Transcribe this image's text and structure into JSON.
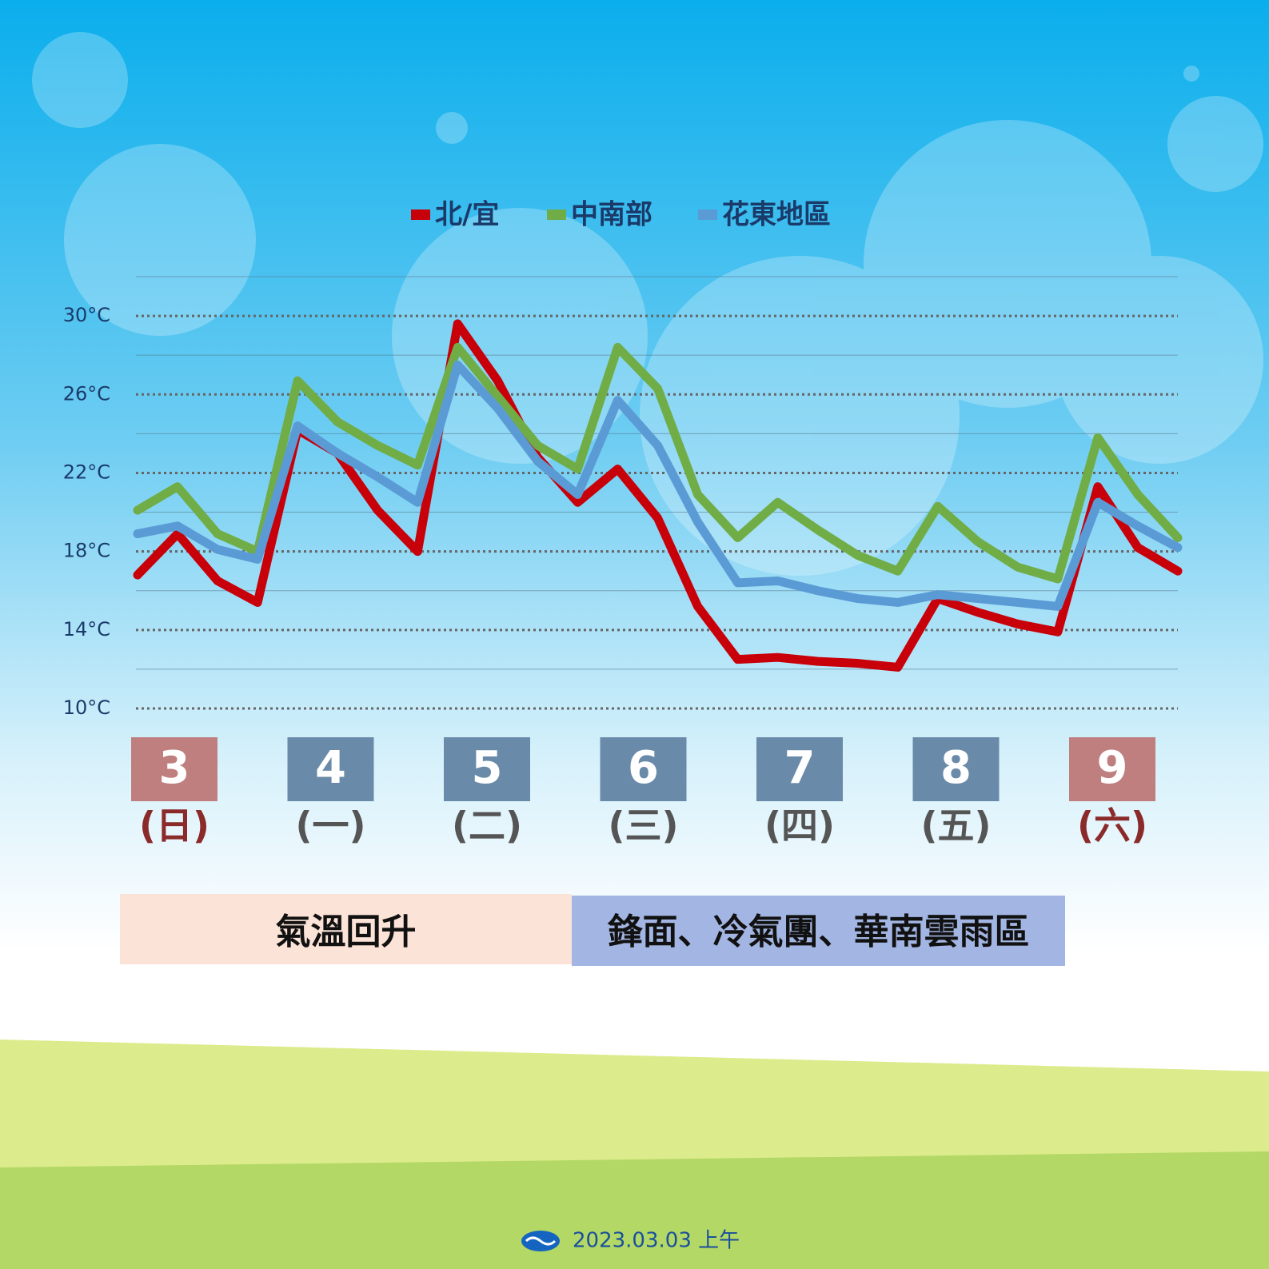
{
  "chart_data": {
    "type": "line",
    "categories": [
      null,
      null,
      null,
      null,
      null,
      null,
      null,
      null,
      null,
      null,
      null,
      null,
      null,
      null,
      null,
      null,
      null,
      null,
      null,
      null,
      null,
      null,
      null,
      null,
      null,
      null,
      null
    ],
    "series": [
      {
        "name": "北/宜",
        "color": "#c8000a",
        "values": [
          16.8,
          18.9,
          16.5,
          15.4,
          24.2,
          23.0,
          20.1,
          18.0,
          29.6,
          26.7,
          22.8,
          20.5,
          22.2,
          19.7,
          15.2,
          12.5,
          12.6,
          12.4,
          12.3,
          12.1,
          15.6,
          14.9,
          14.3,
          13.9,
          21.3,
          18.2,
          17.0
        ]
      },
      {
        "name": "中南部",
        "color": "#70ad47",
        "values": [
          20.1,
          21.3,
          18.9,
          18.0,
          26.7,
          24.6,
          23.4,
          22.4,
          28.4,
          25.9,
          23.4,
          22.2,
          28.4,
          26.3,
          20.9,
          18.7,
          20.5,
          19.1,
          17.8,
          17.0,
          20.3,
          18.5,
          17.2,
          16.6,
          23.8,
          20.9,
          18.7
        ]
      },
      {
        "name": "花東地區",
        "color": "#5b9bd5",
        "values": [
          18.9,
          19.3,
          18.1,
          17.6,
          24.4,
          23.0,
          21.8,
          20.5,
          27.5,
          25.3,
          22.6,
          20.9,
          25.7,
          23.4,
          19.5,
          16.4,
          16.5,
          16.0,
          15.6,
          15.4,
          15.8,
          15.6,
          15.4,
          15.2,
          20.5,
          19.3,
          18.2
        ]
      }
    ],
    "ylim": [
      10,
      32
    ],
    "yticks": [
      {
        "value": 10,
        "label": "10°C"
      },
      {
        "value": 14,
        "label": "14°C"
      },
      {
        "value": 18,
        "label": "18°C"
      },
      {
        "value": 22,
        "label": "22°C"
      },
      {
        "value": 26,
        "label": "26°C"
      },
      {
        "value": 30,
        "label": "30°C"
      }
    ],
    "minor_yticks": [
      12,
      16,
      20,
      24,
      28,
      32
    ],
    "grid": true,
    "days": [
      {
        "date": "3",
        "weekday": "(日)",
        "color": "#bf7f7f",
        "text_color": "#8b2a2a"
      },
      {
        "date": "4",
        "weekday": "(一)",
        "color": "#6a8aaa",
        "text_color": "#555555"
      },
      {
        "date": "5",
        "weekday": "(二)",
        "color": "#6a8aaa",
        "text_color": "#555555"
      },
      {
        "date": "6",
        "weekday": "(三)",
        "color": "#6a8aaa",
        "text_color": "#555555"
      },
      {
        "date": "7",
        "weekday": "(四)",
        "color": "#6a8aaa",
        "text_color": "#555555"
      },
      {
        "date": "8",
        "weekday": "(五)",
        "color": "#6a8aaa",
        "text_color": "#555555"
      },
      {
        "date": "9",
        "weekday": "(六)",
        "color": "#bf7f7f",
        "text_color": "#8b2a2a"
      }
    ],
    "banners": [
      {
        "text": "氣溫回升",
        "color": "#fce3d8"
      },
      {
        "text": "鋒面、冷氣團、華南雲雨區",
        "color": "#a3b6e3"
      }
    ],
    "footer": "2023.03.03 上午"
  }
}
